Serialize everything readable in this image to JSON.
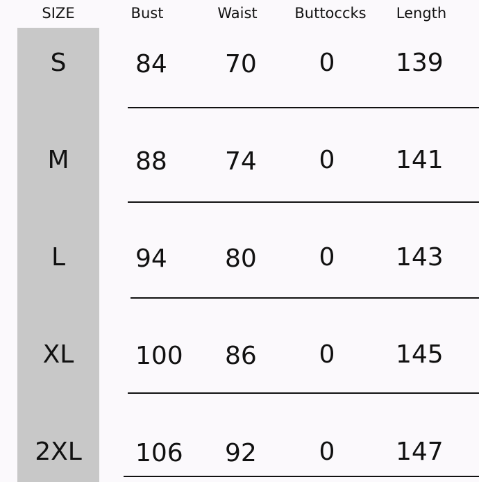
{
  "table": {
    "headers": [
      "SIZE",
      "Bust",
      "Waist",
      "Buttoccks",
      "Length"
    ],
    "rows": [
      [
        "S",
        84,
        70,
        0,
        139
      ],
      [
        "M",
        88,
        74,
        0,
        141
      ],
      [
        "L",
        94,
        80,
        0,
        143
      ],
      [
        "XL",
        100,
        86,
        0,
        145
      ],
      [
        "2XL",
        106,
        92,
        0,
        147
      ]
    ]
  }
}
